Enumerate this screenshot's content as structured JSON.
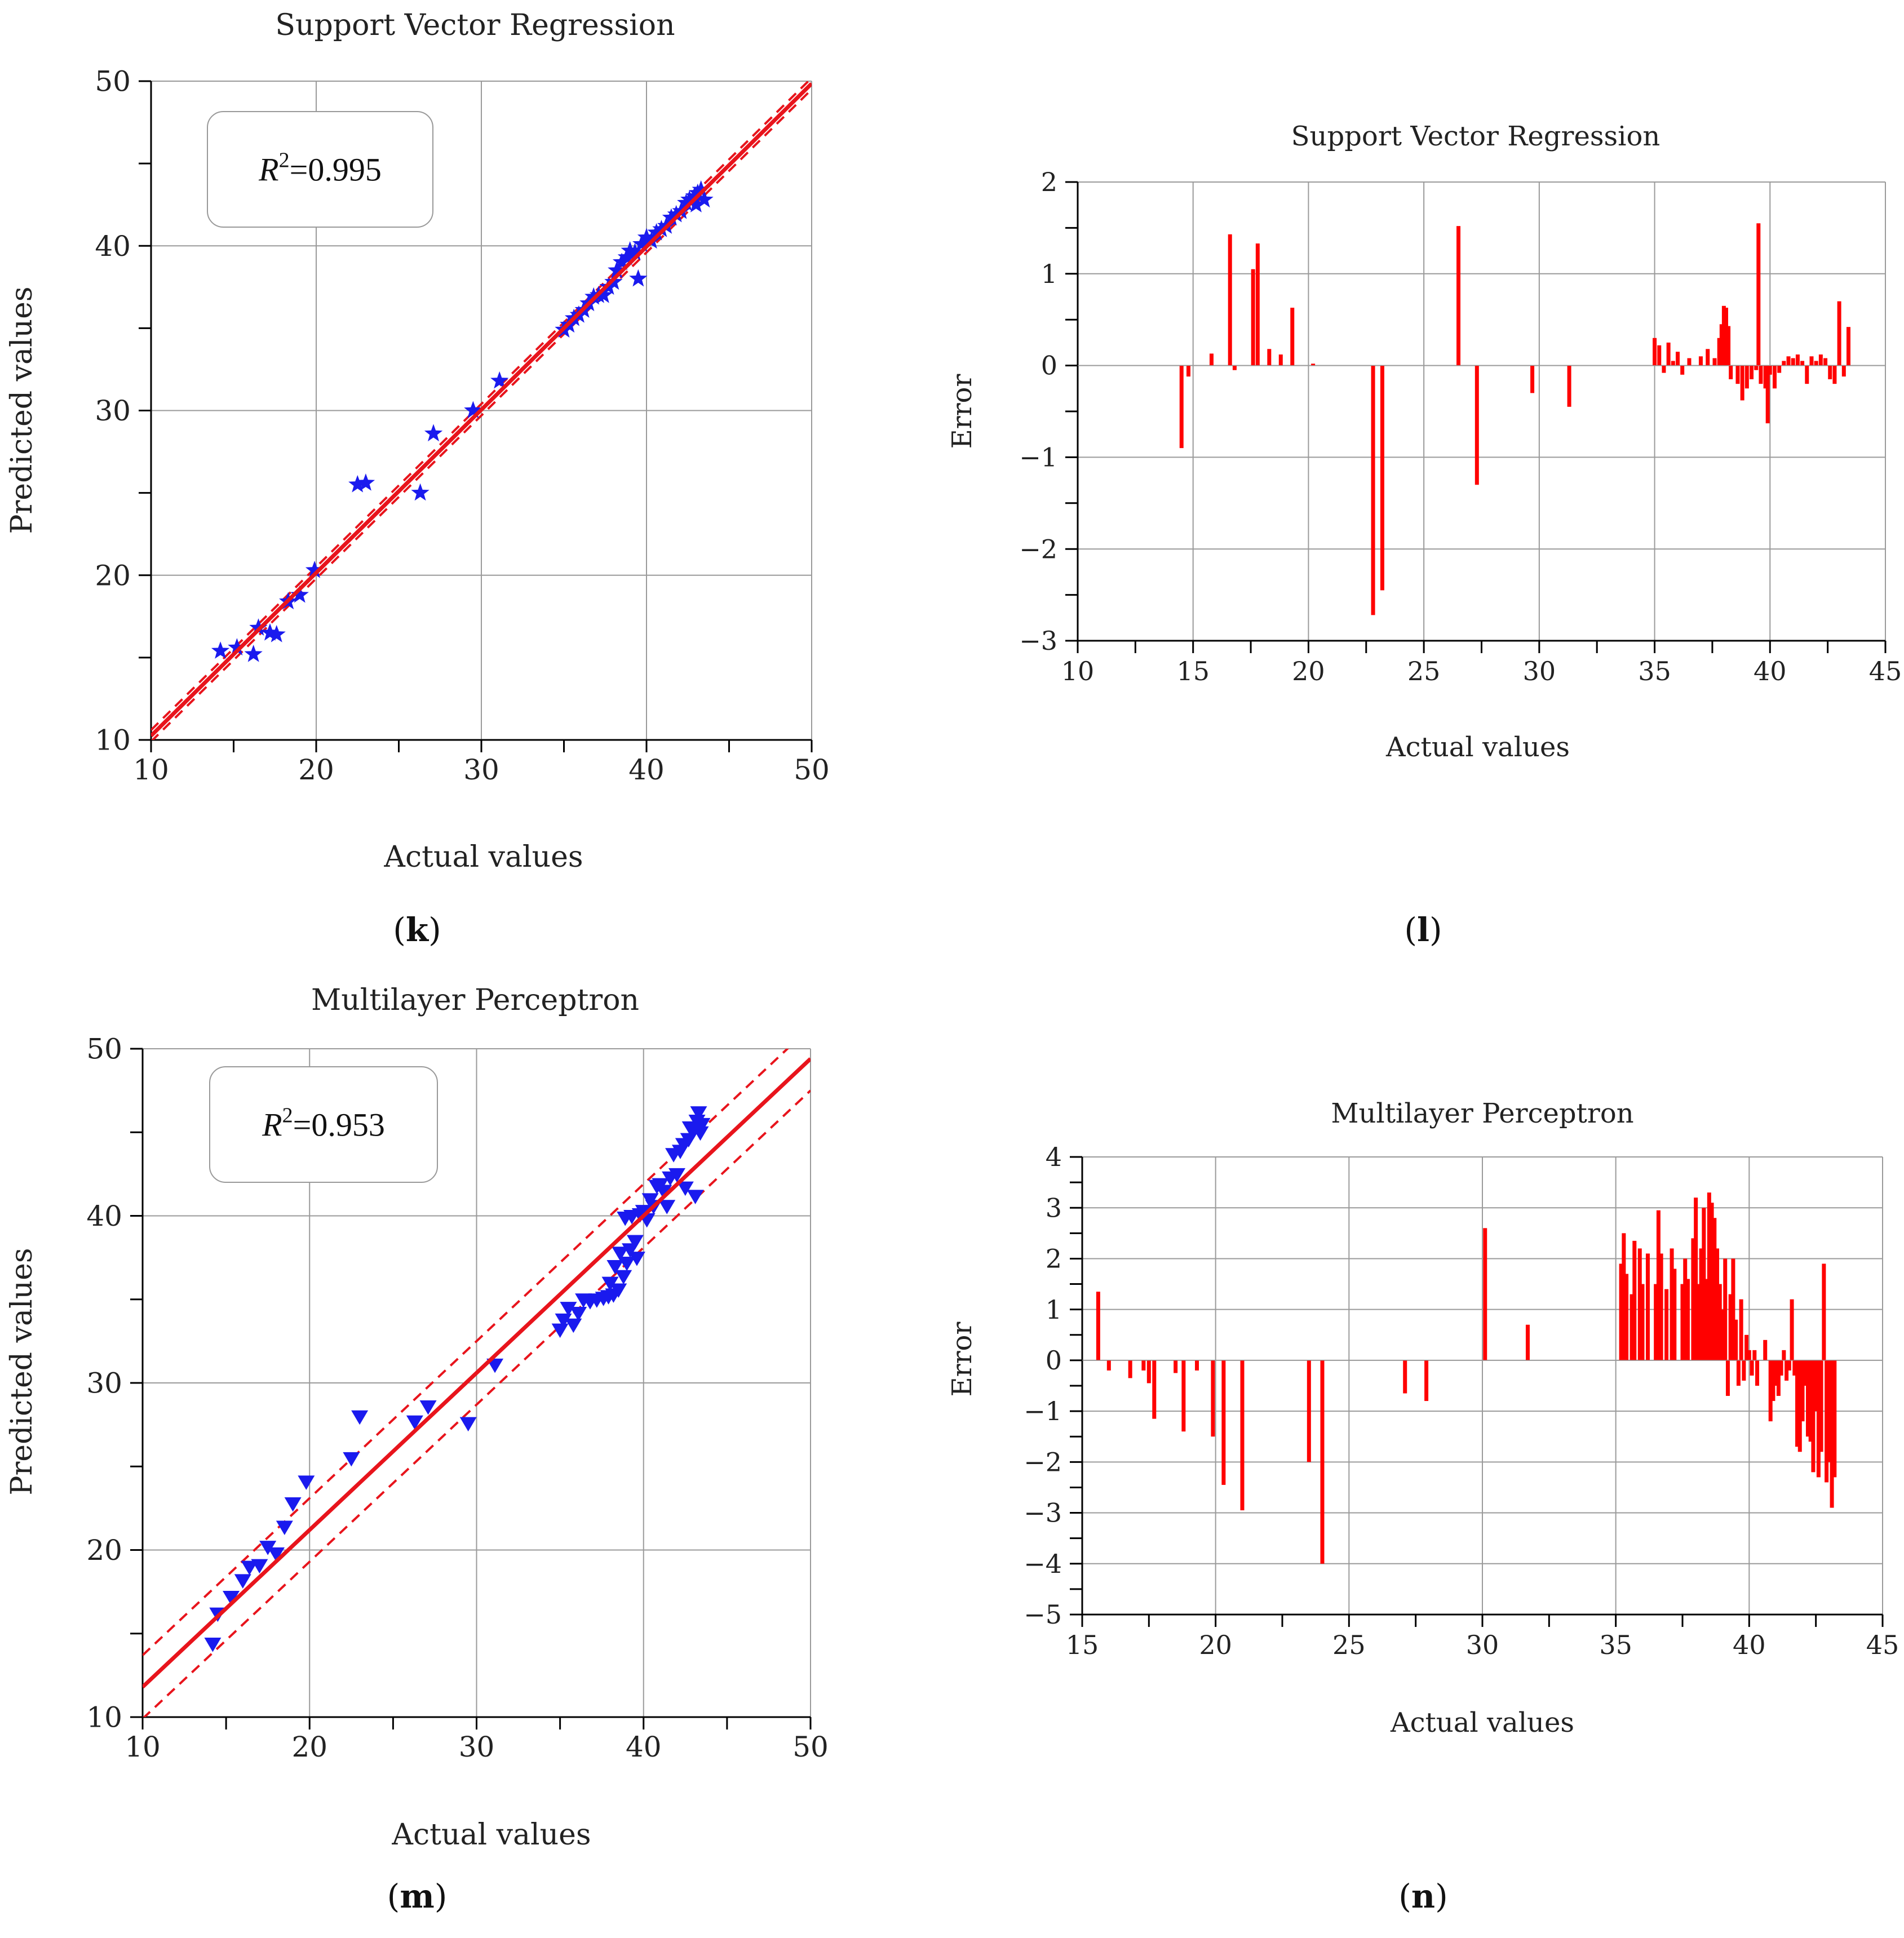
{
  "colors": {
    "fit_line": "#e8141c",
    "points": "#1a1aee",
    "error_bars": "#ff0000",
    "grid": "#9a9a9a",
    "axis": "#000000"
  },
  "chart_data": [
    {
      "id": "k",
      "panel_label": "k",
      "type": "scatter",
      "title": "Support Vector Regression",
      "xlabel": "Actual values",
      "ylabel": "Predicted values",
      "xlim": [
        10,
        50
      ],
      "ylim": [
        10,
        50
      ],
      "xticks": [
        10,
        20,
        30,
        40,
        50
      ],
      "yticks": [
        10,
        20,
        30,
        40,
        50
      ],
      "grid": true,
      "annotation": {
        "r2_prefix": "R",
        "r2_sup": "2",
        "r2_value": "=0.995"
      },
      "marker": "star",
      "fit_line": {
        "slope": 0.99,
        "intercept": 0.35
      },
      "confidence_band": 0.35,
      "points": [
        [
          14.2,
          15.4
        ],
        [
          15.2,
          15.6
        ],
        [
          16.2,
          15.2
        ],
        [
          16.5,
          16.8
        ],
        [
          17.2,
          16.5
        ],
        [
          17.6,
          16.4
        ],
        [
          18.3,
          18.4
        ],
        [
          19.0,
          18.8
        ],
        [
          19.9,
          20.3
        ],
        [
          22.5,
          25.5
        ],
        [
          23.0,
          25.6
        ],
        [
          26.3,
          25.0
        ],
        [
          27.1,
          28.6
        ],
        [
          29.5,
          30.0
        ],
        [
          31.1,
          31.8
        ],
        [
          35.0,
          34.9
        ],
        [
          35.3,
          35.2
        ],
        [
          35.6,
          35.6
        ],
        [
          35.9,
          35.8
        ],
        [
          36.2,
          36.1
        ],
        [
          36.5,
          36.5
        ],
        [
          36.8,
          36.9
        ],
        [
          37.1,
          37.0
        ],
        [
          37.4,
          37.0
        ],
        [
          37.7,
          37.5
        ],
        [
          38.0,
          37.8
        ],
        [
          38.2,
          38.5
        ],
        [
          38.5,
          39.0
        ],
        [
          38.8,
          39.3
        ],
        [
          39.0,
          39.7
        ],
        [
          39.3,
          39.6
        ],
        [
          39.5,
          38.0
        ],
        [
          39.7,
          40.1
        ],
        [
          40.0,
          40.5
        ],
        [
          40.3,
          40.3
        ],
        [
          40.6,
          40.8
        ],
        [
          40.9,
          41.0
        ],
        [
          41.2,
          41.2
        ],
        [
          41.5,
          41.7
        ],
        [
          41.8,
          41.9
        ],
        [
          42.1,
          42.1
        ],
        [
          42.4,
          42.6
        ],
        [
          42.6,
          42.8
        ],
        [
          42.9,
          43.0
        ],
        [
          43.1,
          43.2
        ],
        [
          43.3,
          43.4
        ],
        [
          43.5,
          42.8
        ],
        [
          43.0,
          42.5
        ]
      ]
    },
    {
      "id": "l",
      "panel_label": "l",
      "type": "bar",
      "title": "Support Vector Regression",
      "xlabel": "Actual values",
      "ylabel": "Error",
      "xlim": [
        10,
        45
      ],
      "ylim": [
        -3,
        2
      ],
      "xticks": [
        10,
        15,
        20,
        25,
        30,
        35,
        40,
        45
      ],
      "yticks": [
        -3,
        -2,
        -1,
        0,
        1,
        2
      ],
      "ytick_labels": [
        "−3",
        "−2",
        "−1",
        "0",
        "1",
        "2"
      ],
      "grid": true,
      "bars": [
        [
          14.5,
          -0.9
        ],
        [
          14.8,
          -0.12
        ],
        [
          15.8,
          0.13
        ],
        [
          16.6,
          1.43
        ],
        [
          16.8,
          -0.05
        ],
        [
          17.6,
          1.05
        ],
        [
          17.8,
          1.33
        ],
        [
          18.3,
          0.18
        ],
        [
          18.8,
          0.12
        ],
        [
          19.3,
          0.63
        ],
        [
          20.2,
          0.02
        ],
        [
          22.8,
          -2.72
        ],
        [
          23.2,
          -2.45
        ],
        [
          26.5,
          1.52
        ],
        [
          27.3,
          -1.3
        ],
        [
          29.7,
          -0.3
        ],
        [
          31.3,
          -0.45
        ],
        [
          35.0,
          0.3
        ],
        [
          35.2,
          0.22
        ],
        [
          35.4,
          -0.08
        ],
        [
          35.6,
          0.25
        ],
        [
          35.8,
          0.05
        ],
        [
          36.0,
          0.15
        ],
        [
          36.2,
          -0.1
        ],
        [
          36.5,
          0.08
        ],
        [
          37.0,
          0.1
        ],
        [
          37.3,
          0.18
        ],
        [
          37.6,
          0.08
        ],
        [
          37.8,
          0.3
        ],
        [
          37.9,
          0.45
        ],
        [
          38.0,
          0.65
        ],
        [
          38.1,
          0.63
        ],
        [
          38.2,
          0.43
        ],
        [
          38.3,
          -0.15
        ],
        [
          38.6,
          -0.2
        ],
        [
          38.8,
          -0.38
        ],
        [
          39.0,
          -0.25
        ],
        [
          39.2,
          -0.15
        ],
        [
          39.4,
          -0.05
        ],
        [
          39.5,
          1.55
        ],
        [
          39.6,
          -0.2
        ],
        [
          39.8,
          -0.25
        ],
        [
          39.9,
          -0.63
        ],
        [
          40.0,
          -0.1
        ],
        [
          40.2,
          -0.25
        ],
        [
          40.4,
          -0.08
        ],
        [
          40.6,
          0.05
        ],
        [
          40.8,
          0.1
        ],
        [
          41.0,
          0.08
        ],
        [
          41.2,
          0.12
        ],
        [
          41.4,
          0.05
        ],
        [
          41.6,
          -0.2
        ],
        [
          41.8,
          0.1
        ],
        [
          42.0,
          0.05
        ],
        [
          42.2,
          0.12
        ],
        [
          42.4,
          0.08
        ],
        [
          42.6,
          -0.15
        ],
        [
          42.8,
          -0.2
        ],
        [
          43.0,
          0.7
        ],
        [
          43.2,
          -0.12
        ],
        [
          43.4,
          0.42
        ]
      ]
    },
    {
      "id": "m",
      "panel_label": "m",
      "type": "scatter",
      "title": "Multilayer Perceptron",
      "xlabel": "Actual values",
      "ylabel": "Predicted values",
      "xlim": [
        10,
        50
      ],
      "ylim": [
        10,
        50
      ],
      "xticks": [
        10,
        20,
        30,
        40,
        50
      ],
      "yticks": [
        10,
        20,
        30,
        40,
        50
      ],
      "grid": true,
      "annotation": {
        "r2_prefix": "R",
        "r2_sup": "2",
        "r2_value": "=0.953"
      },
      "marker": "triangle-down",
      "fit_line": {
        "slope": 0.94,
        "intercept": 2.4
      },
      "confidence_band": 1.9,
      "points": [
        [
          14.2,
          14.4
        ],
        [
          14.5,
          16.2
        ],
        [
          15.3,
          17.2
        ],
        [
          16.0,
          18.2
        ],
        [
          16.4,
          19.0
        ],
        [
          17.0,
          19.1
        ],
        [
          17.5,
          20.2
        ],
        [
          18.0,
          19.8
        ],
        [
          18.5,
          21.4
        ],
        [
          19.0,
          22.8
        ],
        [
          19.8,
          24.1
        ],
        [
          22.5,
          25.5
        ],
        [
          23.0,
          28.0
        ],
        [
          26.3,
          27.7
        ],
        [
          27.1,
          28.6
        ],
        [
          29.5,
          27.6
        ],
        [
          31.1,
          31.1
        ],
        [
          35.0,
          33.2
        ],
        [
          35.2,
          33.8
        ],
        [
          35.5,
          34.5
        ],
        [
          35.8,
          33.5
        ],
        [
          36.1,
          34.2
        ],
        [
          36.4,
          35.0
        ],
        [
          36.8,
          34.9
        ],
        [
          37.2,
          35.0
        ],
        [
          37.6,
          35.1
        ],
        [
          37.9,
          35.2
        ],
        [
          38.0,
          36.0
        ],
        [
          38.2,
          35.3
        ],
        [
          38.3,
          37.0
        ],
        [
          38.5,
          35.6
        ],
        [
          38.6,
          37.8
        ],
        [
          38.8,
          36.4
        ],
        [
          38.9,
          39.9
        ],
        [
          39.0,
          37.2
        ],
        [
          39.2,
          38.0
        ],
        [
          39.3,
          40.0
        ],
        [
          39.5,
          38.5
        ],
        [
          39.6,
          37.5
        ],
        [
          39.8,
          40.1
        ],
        [
          40.0,
          40.3
        ],
        [
          40.2,
          39.8
        ],
        [
          40.4,
          41.0
        ],
        [
          40.6,
          40.6
        ],
        [
          40.8,
          41.8
        ],
        [
          41.0,
          41.9
        ],
        [
          41.2,
          41.5
        ],
        [
          41.4,
          40.6
        ],
        [
          41.6,
          42.3
        ],
        [
          41.8,
          43.7
        ],
        [
          42.0,
          42.5
        ],
        [
          42.2,
          43.9
        ],
        [
          42.4,
          44.3
        ],
        [
          42.5,
          41.7
        ],
        [
          42.7,
          44.6
        ],
        [
          42.8,
          45.3
        ],
        [
          43.0,
          45.1
        ],
        [
          43.1,
          41.2
        ],
        [
          43.2,
          45.7
        ],
        [
          43.3,
          46.2
        ],
        [
          43.4,
          45.0
        ],
        [
          43.5,
          45.5
        ]
      ]
    },
    {
      "id": "n",
      "panel_label": "n",
      "type": "bar",
      "title": "Multilayer Perceptron",
      "xlabel": "Actual values",
      "ylabel": "Error",
      "xlim": [
        15,
        45
      ],
      "ylim": [
        -5,
        4
      ],
      "xticks": [
        15,
        20,
        25,
        30,
        35,
        40,
        45
      ],
      "yticks": [
        -5,
        -4,
        -3,
        -2,
        -1,
        0,
        1,
        2,
        3,
        4
      ],
      "ytick_labels": [
        "−5",
        "−4",
        "−3",
        "−2",
        "−1",
        "0",
        "1",
        "2",
        "3",
        "4"
      ],
      "grid": true,
      "bars": [
        [
          15.6,
          1.35
        ],
        [
          16.0,
          -0.2
        ],
        [
          16.8,
          -0.35
        ],
        [
          17.3,
          -0.2
        ],
        [
          17.5,
          -0.45
        ],
        [
          17.7,
          -1.15
        ],
        [
          18.5,
          -0.25
        ],
        [
          18.8,
          -1.4
        ],
        [
          19.3,
          -0.2
        ],
        [
          19.9,
          -1.5
        ],
        [
          20.3,
          -2.45
        ],
        [
          21.0,
          -2.95
        ],
        [
          23.5,
          -2.0
        ],
        [
          24.0,
          -4.0
        ],
        [
          27.1,
          -0.65
        ],
        [
          27.9,
          -0.8
        ],
        [
          30.1,
          2.6
        ],
        [
          31.7,
          0.7
        ],
        [
          35.2,
          1.9
        ],
        [
          35.3,
          2.5
        ],
        [
          35.4,
          1.7
        ],
        [
          35.6,
          1.3
        ],
        [
          35.7,
          2.35
        ],
        [
          35.9,
          2.2
        ],
        [
          36.0,
          1.5
        ],
        [
          36.2,
          2.1
        ],
        [
          36.5,
          1.5
        ],
        [
          36.6,
          2.95
        ],
        [
          36.7,
          2.1
        ],
        [
          36.9,
          1.4
        ],
        [
          37.1,
          2.2
        ],
        [
          37.2,
          1.8
        ],
        [
          37.5,
          1.5
        ],
        [
          37.6,
          2.0
        ],
        [
          37.7,
          1.6
        ],
        [
          37.9,
          2.4
        ],
        [
          38.0,
          3.2
        ],
        [
          38.1,
          1.5
        ],
        [
          38.2,
          2.2
        ],
        [
          38.3,
          3.0
        ],
        [
          38.4,
          1.6
        ],
        [
          38.5,
          3.3
        ],
        [
          38.6,
          3.1
        ],
        [
          38.7,
          2.8
        ],
        [
          38.8,
          2.2
        ],
        [
          38.9,
          1.5
        ],
        [
          39.0,
          1.0
        ],
        [
          39.1,
          2.0
        ],
        [
          39.2,
          -0.7
        ],
        [
          39.3,
          1.3
        ],
        [
          39.4,
          2.0
        ],
        [
          39.5,
          0.8
        ],
        [
          39.6,
          -0.5
        ],
        [
          39.7,
          1.2
        ],
        [
          39.8,
          -0.4
        ],
        [
          39.9,
          0.5
        ],
        [
          40.0,
          0.2
        ],
        [
          40.1,
          -0.3
        ],
        [
          40.2,
          0.2
        ],
        [
          40.3,
          -0.5
        ],
        [
          40.6,
          0.4
        ],
        [
          40.8,
          -1.2
        ],
        [
          40.9,
          -0.8
        ],
        [
          41.0,
          -0.5
        ],
        [
          41.1,
          -0.7
        ],
        [
          41.2,
          -0.3
        ],
        [
          41.3,
          0.2
        ],
        [
          41.4,
          -0.4
        ],
        [
          41.5,
          -0.2
        ],
        [
          41.6,
          1.2
        ],
        [
          41.7,
          -0.3
        ],
        [
          41.8,
          -1.7
        ],
        [
          41.9,
          -1.8
        ],
        [
          42.0,
          -1.2
        ],
        [
          42.1,
          -0.5
        ],
        [
          42.2,
          -1.5
        ],
        [
          42.3,
          -1.6
        ],
        [
          42.4,
          -2.2
        ],
        [
          42.5,
          -1.0
        ],
        [
          42.6,
          -2.3
        ],
        [
          42.7,
          -1.8
        ],
        [
          42.8,
          1.9
        ],
        [
          42.9,
          -2.4
        ],
        [
          43.0,
          -2.0
        ],
        [
          43.1,
          -2.9
        ],
        [
          43.2,
          -2.3
        ]
      ]
    }
  ]
}
